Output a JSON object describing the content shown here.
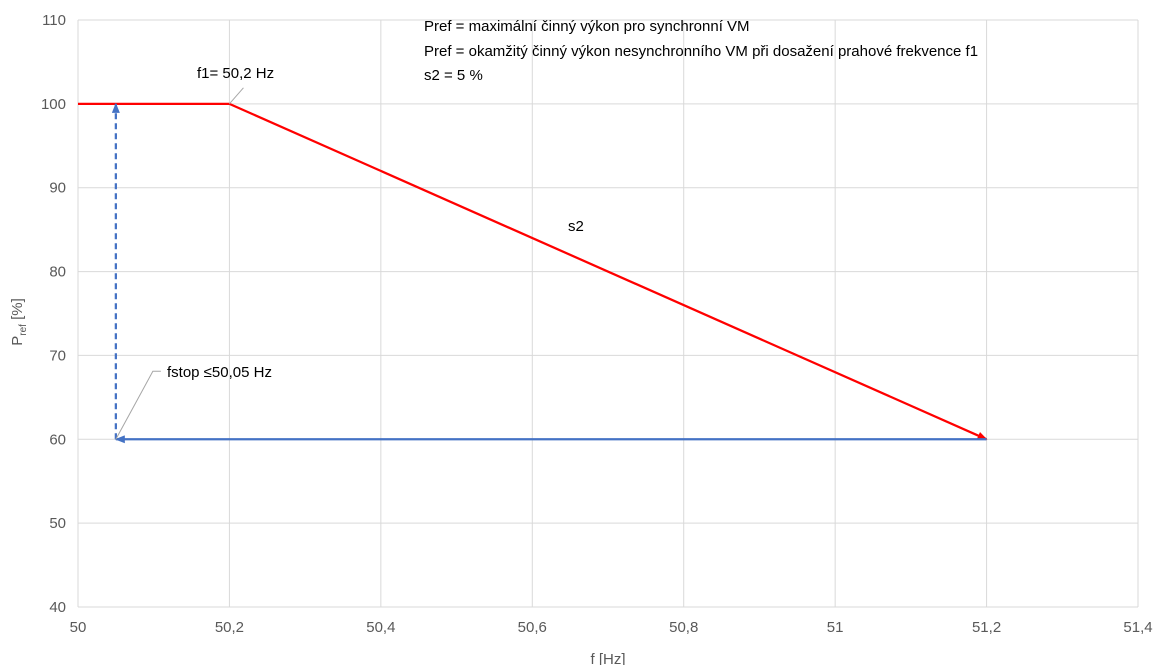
{
  "chart_data": {
    "type": "line",
    "xlabel": "f [Hz]",
    "ylabel_main": "P",
    "ylabel_sub": "ref",
    "ylabel_tail": " [%]",
    "xlim": [
      50,
      51.4
    ],
    "ylim": [
      40,
      110
    ],
    "x_ticks": [
      50,
      50.2,
      50.4,
      50.6,
      50.8,
      51,
      51.2,
      51.4
    ],
    "x_tick_labels": [
      "50",
      "50,2",
      "50,4",
      "50,6",
      "50,8",
      "51",
      "51,2",
      "51,4"
    ],
    "y_ticks": [
      40,
      50,
      60,
      70,
      80,
      90,
      100,
      110
    ],
    "y_tick_labels": [
      "40",
      "50",
      "60",
      "70",
      "80",
      "90",
      "100",
      "110"
    ],
    "grid": true,
    "colors": {
      "red": "#ff0000",
      "blue": "#4472c4",
      "grid": "#d9d9d9",
      "leader": "#a6a6a6"
    },
    "series": [
      {
        "style": "red-solid",
        "points": [
          [
            50,
            100
          ],
          [
            50.2,
            100
          ]
        ]
      },
      {
        "style": "red-solid-arrow",
        "points": [
          [
            50.2,
            100
          ],
          [
            51.2,
            60
          ]
        ]
      },
      {
        "style": "blue-solid-arrow",
        "points": [
          [
            51.2,
            60
          ],
          [
            50.05,
            60
          ]
        ]
      },
      {
        "style": "blue-dashed-arrow",
        "points": [
          [
            50.05,
            60
          ],
          [
            50.05,
            100
          ]
        ]
      }
    ],
    "annotations": {
      "f1": "f1= 50,2 Hz",
      "fstop": "fstop ≤50,05 Hz",
      "s2_label": "s2",
      "note_lines": [
        "Pref = maximální činný výkon pro synchronní VM",
        "Pref = okamžitý činný výkon nesynchronního VM při dosažení prahové frekvence f1",
        "s2 = 5 %"
      ]
    }
  }
}
